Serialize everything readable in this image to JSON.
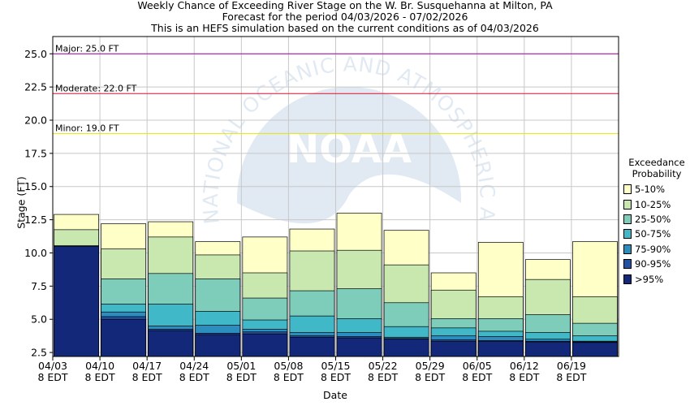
{
  "titles": {
    "line1": "Weekly Chance of Exceeding River Stage on the W. Br. Susquehanna at Milton, PA",
    "line2": "Forecast for the period 04/03/2026 - 07/02/2026",
    "line3": "This is an HEFS simulation based on the current conditions as of 04/03/2026"
  },
  "watermark": {
    "logo_text": "NOAA",
    "arc_text": "NATIONAL OCEANIC AND ATMOSPHERIC ADMINISTRATION"
  },
  "legend": {
    "title1": "Exceedance",
    "title2": "Probability"
  },
  "colors": {
    "gt95": "#14287a",
    "p90_95": "#2351a4",
    "p75_90": "#2c8ebe",
    "p50_75": "#40b8c8",
    "p25_50": "#7ecdbb",
    "p10_25": "#c8e8b0",
    "p5_10": "#ffffc8",
    "major": "#aa00aa",
    "moderate": "#e01030",
    "minor": "#e6e600",
    "grid": "#c8c8c8"
  },
  "chart_data": {
    "type": "bar",
    "xlabel": "Date",
    "ylabel": "Stage (FT)",
    "ylim": [
      2.2,
      26.3
    ],
    "yticks": [
      "2.5",
      "5.0",
      "7.5",
      "10.0",
      "12.5",
      "15.0",
      "17.5",
      "20.0",
      "22.5",
      "25.0"
    ],
    "grid": true,
    "legend_position": "right",
    "xticks": [
      {
        "date": "04/03",
        "zone": "8 EDT"
      },
      {
        "date": "04/10",
        "zone": "8 EDT"
      },
      {
        "date": "04/17",
        "zone": "8 EDT"
      },
      {
        "date": "04/24",
        "zone": "8 EDT"
      },
      {
        "date": "05/01",
        "zone": "8 EDT"
      },
      {
        "date": "05/08",
        "zone": "8 EDT"
      },
      {
        "date": "05/15",
        "zone": "8 EDT"
      },
      {
        "date": "05/22",
        "zone": "8 EDT"
      },
      {
        "date": "05/29",
        "zone": "8 EDT"
      },
      {
        "date": "06/05",
        "zone": "8 EDT"
      },
      {
        "date": "06/12",
        "zone": "8 EDT"
      },
      {
        "date": "06/19",
        "zone": "8 EDT"
      }
    ],
    "flood_levels": [
      {
        "name": "Major",
        "label": "Major: 25.0 FT",
        "value": 25.0,
        "color_key": "major"
      },
      {
        "name": "Moderate",
        "label": "Moderate: 22.0 FT",
        "value": 22.0,
        "color_key": "moderate"
      },
      {
        "name": "Minor",
        "label": "Minor: 19.0 FT",
        "value": 19.0,
        "color_key": "minor"
      }
    ],
    "series": [
      {
        "name": ">95%",
        "color_key": "gt95",
        "values": [
          10.5,
          5.0,
          4.15,
          3.85,
          3.9,
          3.65,
          3.6,
          3.5,
          3.35,
          3.35,
          3.3,
          3.25
        ]
      },
      {
        "name": "90-95%",
        "color_key": "p90_95",
        "values": [
          10.5,
          5.2,
          4.25,
          3.95,
          4.05,
          3.75,
          3.7,
          3.55,
          3.45,
          3.4,
          3.35,
          3.3
        ]
      },
      {
        "name": "75-90%",
        "color_key": "p75_90",
        "values": [
          10.5,
          5.55,
          4.5,
          4.55,
          4.25,
          4.0,
          4.0,
          3.65,
          3.75,
          3.7,
          3.5,
          3.35
        ]
      },
      {
        "name": "50-75%",
        "color_key": "p50_75",
        "values": [
          10.5,
          6.15,
          6.15,
          5.6,
          4.95,
          5.25,
          5.05,
          4.45,
          4.35,
          4.1,
          4.0,
          3.75
        ]
      },
      {
        "name": "25-50%",
        "color_key": "p25_50",
        "values": [
          10.55,
          8.05,
          8.45,
          8.05,
          6.6,
          7.15,
          7.3,
          6.25,
          5.05,
          5.05,
          5.35,
          4.7
        ]
      },
      {
        "name": "10-25%",
        "color_key": "p10_25",
        "values": [
          11.75,
          10.3,
          11.2,
          9.85,
          8.5,
          10.15,
          10.2,
          9.1,
          7.2,
          6.7,
          8.0,
          6.7
        ]
      },
      {
        "name": "5-10%",
        "color_key": "p5_10",
        "values": [
          12.9,
          12.2,
          12.35,
          10.85,
          11.2,
          11.8,
          13.0,
          11.7,
          8.5,
          10.8,
          9.5,
          10.85
        ]
      }
    ]
  }
}
